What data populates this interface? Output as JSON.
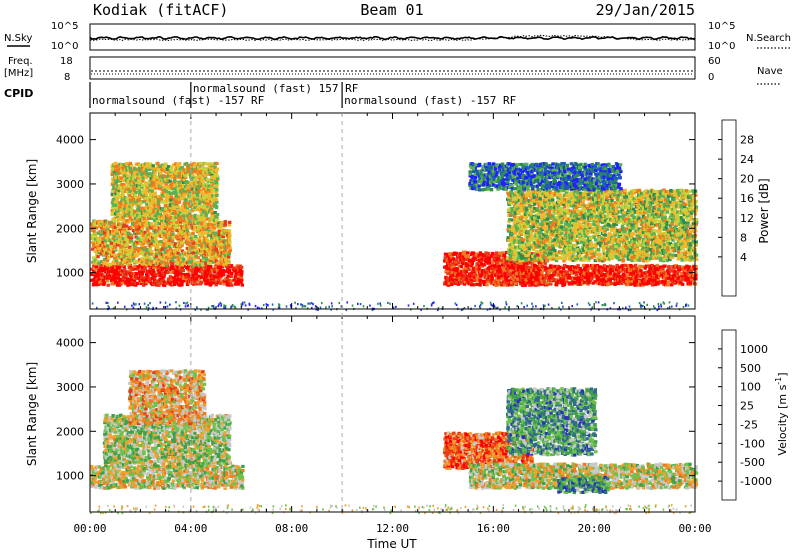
{
  "header": {
    "station": "Kodiak (fitACF)",
    "beam": "Beam 01",
    "date": "29/Jan/2015"
  },
  "top_panels": {
    "nsky_label": "N.Sky",
    "nsky_ticks": [
      "10^5",
      "10^0"
    ],
    "nsearch_label": "N.Search",
    "nsearch_ticks": [
      "10^5",
      "10^0"
    ],
    "freq_label_1": "Freq.",
    "freq_label_2": "[MHz]",
    "freq_ticks": [
      "18",
      "8"
    ],
    "nave_label": "Nave",
    "nave_ticks": [
      "60",
      "0"
    ],
    "cpid_label": "CPID",
    "cpid_segments": [
      {
        "start_hour": 0.0,
        "label": "normalsound (fast) -157 RF",
        "row": 2
      },
      {
        "start_hour": 4.0,
        "label": "normalsound (fast) 157 RF",
        "row": 1
      },
      {
        "start_hour": 10.0,
        "label": "normalsound (fast) -157 RF",
        "row": 2
      }
    ]
  },
  "chart_data": [
    {
      "type": "heatmap",
      "name": "power",
      "ylabel": "Slant Range [km]",
      "ylim": [
        180,
        4600
      ],
      "yticks": [
        "1000",
        "2000",
        "3000",
        "4000"
      ],
      "colorbar_label": "Power [dB]",
      "colorbar_ticks": [
        "28",
        "24",
        "20",
        "16",
        "12",
        "8",
        "4"
      ],
      "colorbar_colors": [
        "#2020ff",
        "#1f5fb0",
        "#2e8c4f",
        "#5ab053",
        "#c8d33c",
        "#f5b52a",
        "#f07a1e",
        "#e8391a",
        "#ff0000"
      ],
      "echo_regions": [
        {
          "x": [
            0.0,
            6.0
          ],
          "y": [
            750,
            1200
          ],
          "level": 0.95
        },
        {
          "x": [
            0.0,
            5.5
          ],
          "y": [
            1200,
            2200
          ],
          "level": 0.6
        },
        {
          "x": [
            0.8,
            5.0
          ],
          "y": [
            2200,
            3500
          ],
          "level": 0.55
        },
        {
          "x": [
            14.0,
            18.0
          ],
          "y": [
            750,
            1500
          ],
          "level": 0.9
        },
        {
          "x": [
            17.0,
            24.0
          ],
          "y": [
            750,
            1200
          ],
          "level": 0.9
        },
        {
          "x": [
            16.5,
            24.0
          ],
          "y": [
            1300,
            2900
          ],
          "level": 0.5
        },
        {
          "x": [
            15.0,
            21.0
          ],
          "y": [
            2900,
            3500
          ],
          "level": 0.2
        }
      ]
    },
    {
      "type": "heatmap",
      "name": "velocity",
      "ylabel": "Slant Range [km]",
      "ylim": [
        180,
        4600
      ],
      "yticks": [
        "1000",
        "2000",
        "3000",
        "4000"
      ],
      "colorbar_label": "Velocity [m s",
      "colorbar_label_sup": "-1",
      "colorbar_ticks": [
        "1000",
        "500",
        "100",
        "25",
        "-25",
        "-100",
        "-500",
        "-1000"
      ],
      "colorbar_colors": [
        "#2a33b5",
        "#2e6b8c",
        "#3f9f4a",
        "#6dc24a",
        "#c8c8c8",
        "#f0a030",
        "#f07a1e",
        "#e8391a",
        "#ff0000"
      ],
      "echo_regions": [
        {
          "x": [
            0.0,
            6.0
          ],
          "y": [
            750,
            1250
          ],
          "level": 0.5
        },
        {
          "x": [
            0.5,
            5.5
          ],
          "y": [
            1250,
            2400
          ],
          "level": 0.45
        },
        {
          "x": [
            1.5,
            4.5
          ],
          "y": [
            2200,
            3400
          ],
          "level": 0.6
        },
        {
          "x": [
            14.0,
            17.5
          ],
          "y": [
            1200,
            2000
          ],
          "level": 0.75
        },
        {
          "x": [
            15.0,
            24.0
          ],
          "y": [
            750,
            1300
          ],
          "level": 0.5
        },
        {
          "x": [
            16.5,
            20.0
          ],
          "y": [
            1500,
            3000
          ],
          "level": 0.3
        },
        {
          "x": [
            18.5,
            20.5
          ],
          "y": [
            650,
            1000
          ],
          "level": 0.25
        }
      ]
    }
  ],
  "time_axis": {
    "xlim": [
      0,
      24
    ],
    "label": "Time UT",
    "ticks": [
      "00:00",
      "04:00",
      "08:00",
      "12:00",
      "16:00",
      "20:00",
      "00:00"
    ],
    "dashed_hours": [
      4,
      10
    ]
  }
}
